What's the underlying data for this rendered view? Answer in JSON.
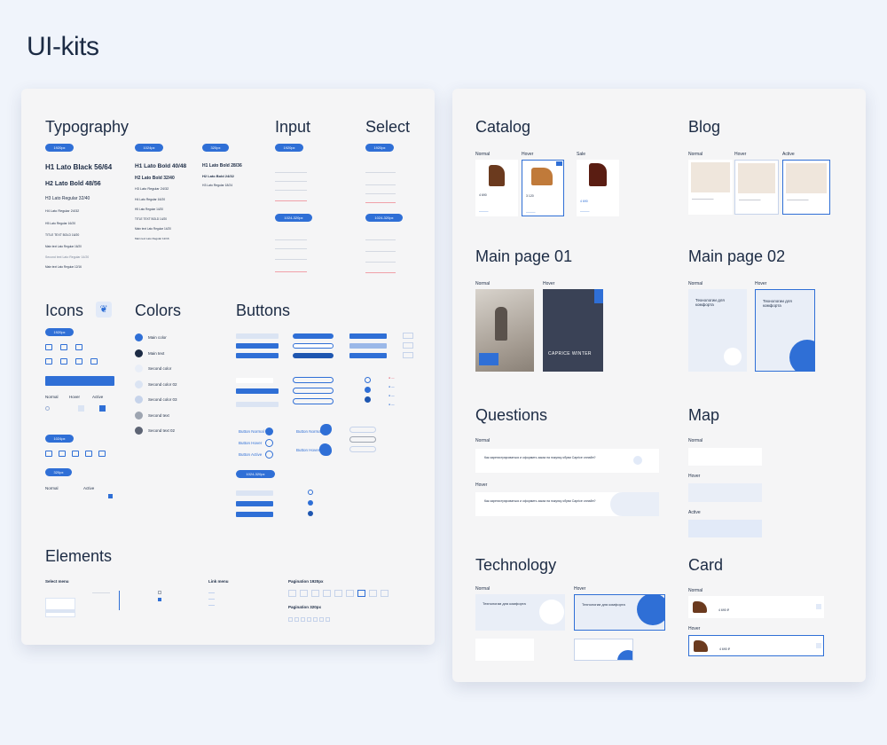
{
  "page_title": "UI-kits",
  "left": {
    "typography": {
      "title": "Typography",
      "breakpoints": [
        "1920px",
        "1024px",
        "320px"
      ],
      "col1": [
        "H1 Lato Black  56/64",
        "H2 Lato Bold 48/56",
        "H3 Lato Regular 32/40",
        "H4 Lato Regular 24/32",
        "H5 Lato Regular 16/20",
        "TITLE TEXT BOLD 16/20",
        "Main text Lato Regular 16/20",
        "Second text Lato Regular 14/20",
        "Main text Lato Regular 12/16"
      ],
      "col2": [
        "H1 Lato Bold  40/48",
        "H2 Lato Bold 32/40",
        "H3 Lato Regular 24/32",
        "H4 Lato Regular 16/20",
        "H5 Lato Regular 14/20",
        "TITLE TEXT BOLD 14/20",
        "Main text Lato Regular 14/20",
        "Main text Lato Regular 12/16"
      ],
      "col3": [
        "H1 Lato Bold  28/36",
        "H2 Lato Bold 24/32",
        "H3 Lato Regular 18/24"
      ]
    },
    "input": {
      "title": "Input",
      "breakpoints": [
        "1920px",
        "1024-320px"
      ]
    },
    "select": {
      "title": "Select",
      "breakpoints": [
        "1920px",
        "1024-320px"
      ]
    },
    "icons": {
      "title": "Icons",
      "breakpoints": [
        "1920px",
        "1024px",
        "320px"
      ],
      "states": [
        "Normal",
        "Hover",
        "Active"
      ]
    },
    "colors": {
      "title": "Colors",
      "items": [
        {
          "label": "Main color",
          "hex": "#2f6fd6"
        },
        {
          "label": "Main text",
          "hex": "#1c2b44"
        },
        {
          "label": "Second color",
          "hex": "#e9eef7"
        },
        {
          "label": "Second color 02",
          "hex": "#dbe4f3"
        },
        {
          "label": "Second color 03",
          "hex": "#c6d3ea"
        },
        {
          "label": "Second text",
          "hex": "#9ea5b1"
        },
        {
          "label": "Second text 02",
          "hex": "#5d6474"
        }
      ]
    },
    "buttons": {
      "title": "Buttons",
      "breakpoint": "1024-320px",
      "round_labels": [
        "Button Normal",
        "Button Hover",
        "Button Active"
      ],
      "blob_labels": [
        "Button Normal",
        "Button Hover"
      ]
    },
    "elements": {
      "title": "Elements",
      "select_menu": "Select menu",
      "link_menu": "Link menu",
      "pagination_1920": "Pagination 1920px",
      "pagination_320": "Pagination 320px"
    }
  },
  "right": {
    "catalog": {
      "title": "Catalog",
      "states": [
        "Normal",
        "Hover",
        "Sale"
      ],
      "prices": [
        "4 690",
        "3 120",
        "4 690"
      ]
    },
    "blog": {
      "title": "Blog",
      "states": [
        "Normal",
        "Hover",
        "Active"
      ]
    },
    "main_page_01": {
      "title": "Main page 01",
      "states": [
        "Normal",
        "Hover"
      ],
      "banner_text": "CAPRICE WINTER"
    },
    "main_page_02": {
      "title": "Main page 02",
      "states": [
        "Normal",
        "Hover"
      ],
      "card_heading": "Технологии для комфорта"
    },
    "questions": {
      "title": "Questions",
      "states": [
        "Normal",
        "Hover"
      ],
      "question": "Как зарегистрироваться и оформить заказ на покупку обуви Caprice онлайн?"
    },
    "map": {
      "title": "Map",
      "states": [
        "Normal",
        "Hover",
        "Active"
      ]
    },
    "technology": {
      "title": "Technology",
      "states": [
        "Normal",
        "Hover"
      ],
      "heading": "Технологии для комфорта"
    },
    "card": {
      "title": "Card",
      "states": [
        "Normal",
        "Hover"
      ],
      "price": "4 690 ₽"
    }
  }
}
